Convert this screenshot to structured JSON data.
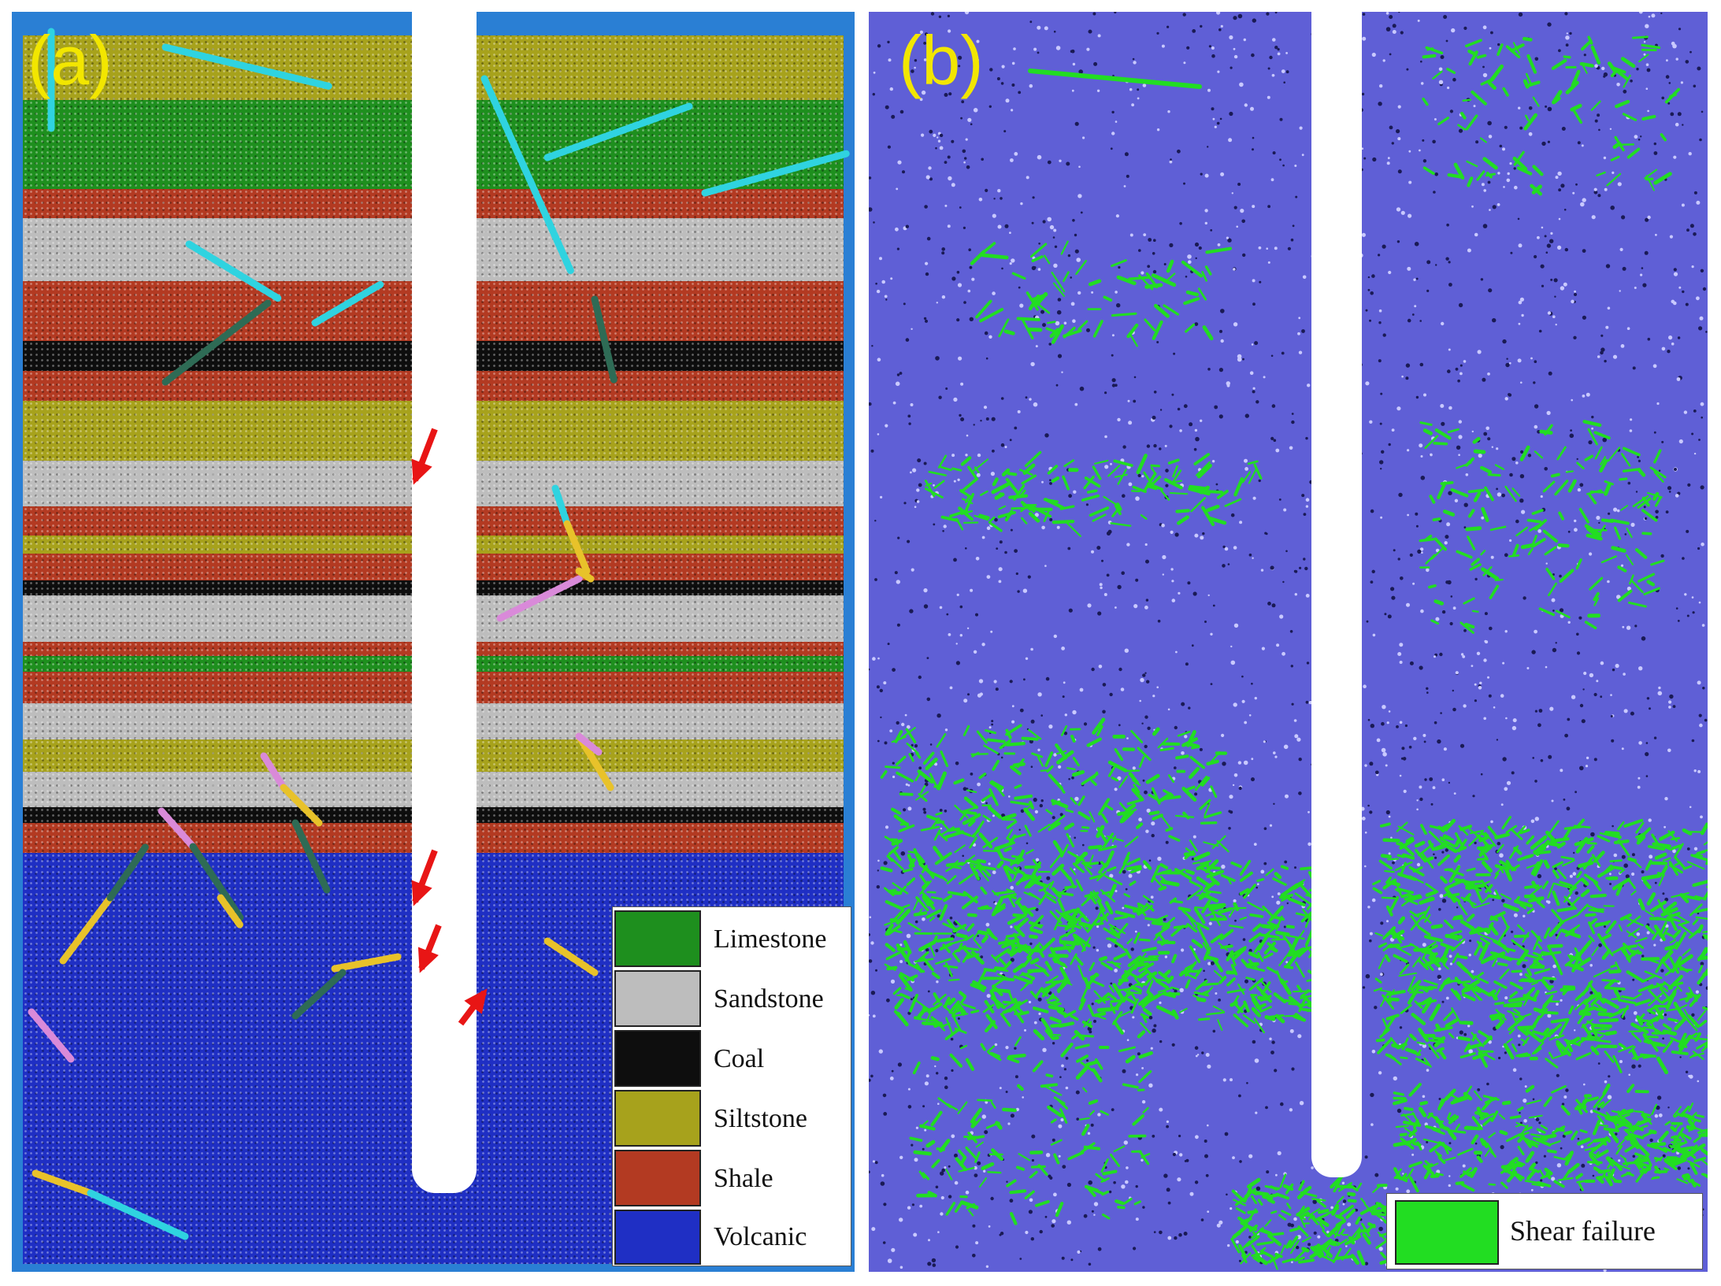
{
  "panel_a": {
    "label": "(a)",
    "legend": [
      {
        "name": "Limestone",
        "color": "#1e8f1e"
      },
      {
        "name": "Sandstone",
        "color": "#bdbdbd"
      },
      {
        "name": "Coal",
        "color": "#0e0e0e"
      },
      {
        "name": "Siltstone",
        "color": "#a7a21c"
      },
      {
        "name": "Shale",
        "color": "#b33a22"
      },
      {
        "name": "Volcanic",
        "color": "#1f2fc4"
      }
    ],
    "layers": [
      "Siltstone",
      "Limestone",
      "Shale",
      "Sandstone",
      "Shale",
      "Coal",
      "Shale",
      "Siltstone",
      "Sandstone",
      "Shale",
      "Siltstone",
      "Shale",
      "Coal",
      "Sandstone",
      "Shale",
      "Limestone",
      "Shale",
      "Sandstone",
      "Siltstone",
      "Sandstone",
      "Coal",
      "Shale",
      "Volcanic"
    ],
    "colors": {
      "frame": "#2a7fd4",
      "arrow": "#e81515",
      "fracture_cyan": "#2fd3e0",
      "fracture_dark": "#2e6b55",
      "fracture_yellow": "#e8c22a",
      "fracture_pink": "#d98ad9"
    }
  },
  "panel_b": {
    "label": "(b)",
    "legend": [
      {
        "name": "Shear failure",
        "color": "#22dd22"
      }
    ],
    "colors": {
      "matrix": "#5f5fd6",
      "shear": "#22dd22"
    }
  }
}
